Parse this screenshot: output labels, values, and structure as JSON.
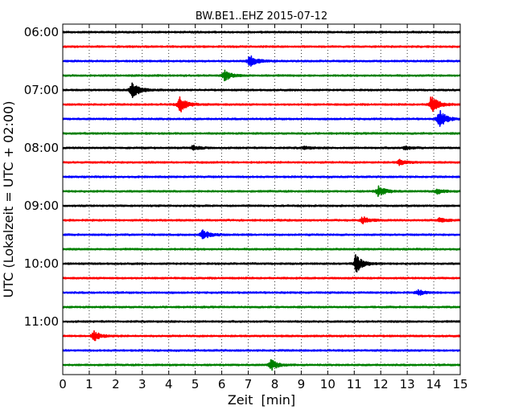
{
  "chart_data": {
    "type": "line",
    "title": "BW.BE1..EHZ 2015-07-12",
    "xlabel": "Zeit  [min]",
    "ylabel": "UTC (Lokalzeit = UTC + 02:00)",
    "xlim": [
      0,
      15
    ],
    "x_ticks": [
      "0",
      "1",
      "2",
      "3",
      "4",
      "5",
      "6",
      "7",
      "8",
      "9",
      "10",
      "11",
      "12",
      "13",
      "14",
      "15"
    ],
    "y_tick_labels": [
      "06:00",
      "07:00",
      "08:00",
      "09:00",
      "10:00",
      "11:00"
    ],
    "grid": "vertical dotted at each minute",
    "line_colors": [
      "#000000",
      "#ff0000",
      "#0000ff",
      "#008000"
    ],
    "traces": [
      {
        "start": "06:00",
        "events": []
      },
      {
        "start": "06:15",
        "events": []
      },
      {
        "start": "06:30",
        "events": [
          {
            "t": 7.05,
            "amp": 0.7
          }
        ]
      },
      {
        "start": "06:45",
        "events": [
          {
            "t": 6.1,
            "amp": 0.55
          }
        ]
      },
      {
        "start": "07:00",
        "events": [
          {
            "t": 2.6,
            "amp": 1.0
          }
        ]
      },
      {
        "start": "07:15",
        "events": [
          {
            "t": 4.4,
            "amp": 1.0
          },
          {
            "t": 13.9,
            "amp": 1.0
          }
        ]
      },
      {
        "start": "07:30",
        "events": [
          {
            "t": 14.2,
            "amp": 1.0
          }
        ]
      },
      {
        "start": "07:45",
        "events": []
      },
      {
        "start": "08:00",
        "events": [
          {
            "t": 4.9,
            "amp": 0.25
          },
          {
            "t": 9.1,
            "amp": 0.15
          },
          {
            "t": 12.9,
            "amp": 0.2
          }
        ]
      },
      {
        "start": "08:15",
        "events": [
          {
            "t": 12.7,
            "amp": 0.3
          }
        ]
      },
      {
        "start": "08:30",
        "events": []
      },
      {
        "start": "08:45",
        "events": [
          {
            "t": 11.9,
            "amp": 0.6
          },
          {
            "t": 14.1,
            "amp": 0.3
          }
        ]
      },
      {
        "start": "09:00",
        "events": []
      },
      {
        "start": "09:15",
        "events": [
          {
            "t": 11.3,
            "amp": 0.4
          },
          {
            "t": 14.2,
            "amp": 0.3
          }
        ]
      },
      {
        "start": "09:30",
        "events": [
          {
            "t": 5.25,
            "amp": 0.55
          }
        ]
      },
      {
        "start": "09:45",
        "events": []
      },
      {
        "start": "10:00",
        "events": [
          {
            "t": 11.05,
            "amp": 1.0
          }
        ]
      },
      {
        "start": "10:15",
        "events": []
      },
      {
        "start": "10:30",
        "events": [
          {
            "t": 13.4,
            "amp": 0.3
          }
        ]
      },
      {
        "start": "10:45",
        "events": []
      },
      {
        "start": "11:00",
        "events": []
      },
      {
        "start": "11:15",
        "events": [
          {
            "t": 1.15,
            "amp": 0.6
          }
        ]
      },
      {
        "start": "11:30",
        "events": []
      },
      {
        "start": "11:45",
        "events": [
          {
            "t": 7.85,
            "amp": 0.6
          }
        ]
      }
    ]
  }
}
